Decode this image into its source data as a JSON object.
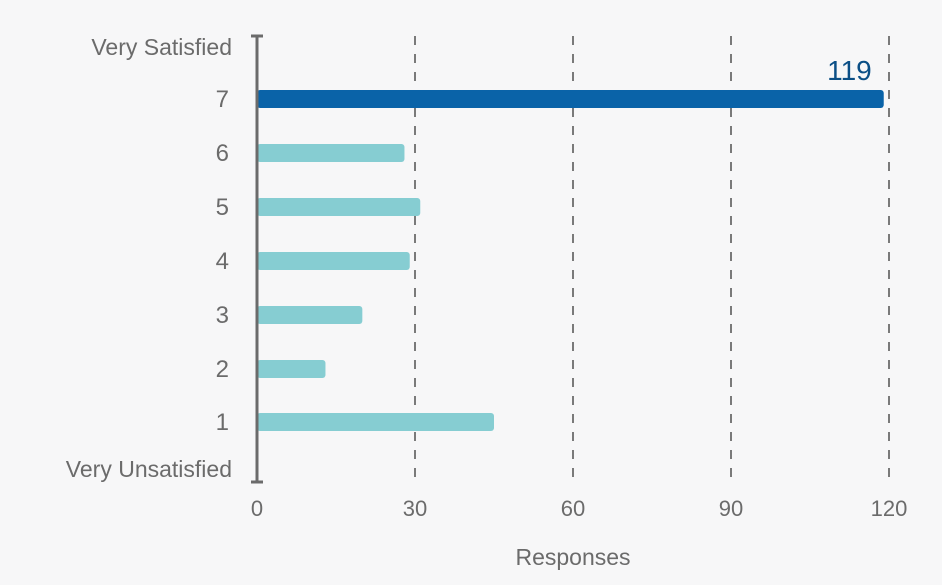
{
  "chart_data": {
    "type": "bar",
    "orientation": "horizontal",
    "categories": [
      "7",
      "6",
      "5",
      "4",
      "3",
      "2",
      "1"
    ],
    "values": [
      119,
      28,
      31,
      29,
      20,
      13,
      45
    ],
    "top_scale_label": "Very Satisfied",
    "bottom_scale_label": "Very Unsatisfied",
    "xlabel": "Responses",
    "xlim": [
      0,
      120
    ],
    "xticks": [
      0,
      30,
      60,
      90,
      120
    ],
    "grid": "vertical dashed",
    "highlight_category": "7",
    "data_labels": [
      {
        "category": "7",
        "text": "119"
      }
    ],
    "colors": {
      "highlight": "#0a63a8",
      "bars": "#86cdd2",
      "data_label": "#0b4f86",
      "axis": "#6b6b6b",
      "grid": "#7a7a7a",
      "text": "#6b6b6b"
    }
  }
}
